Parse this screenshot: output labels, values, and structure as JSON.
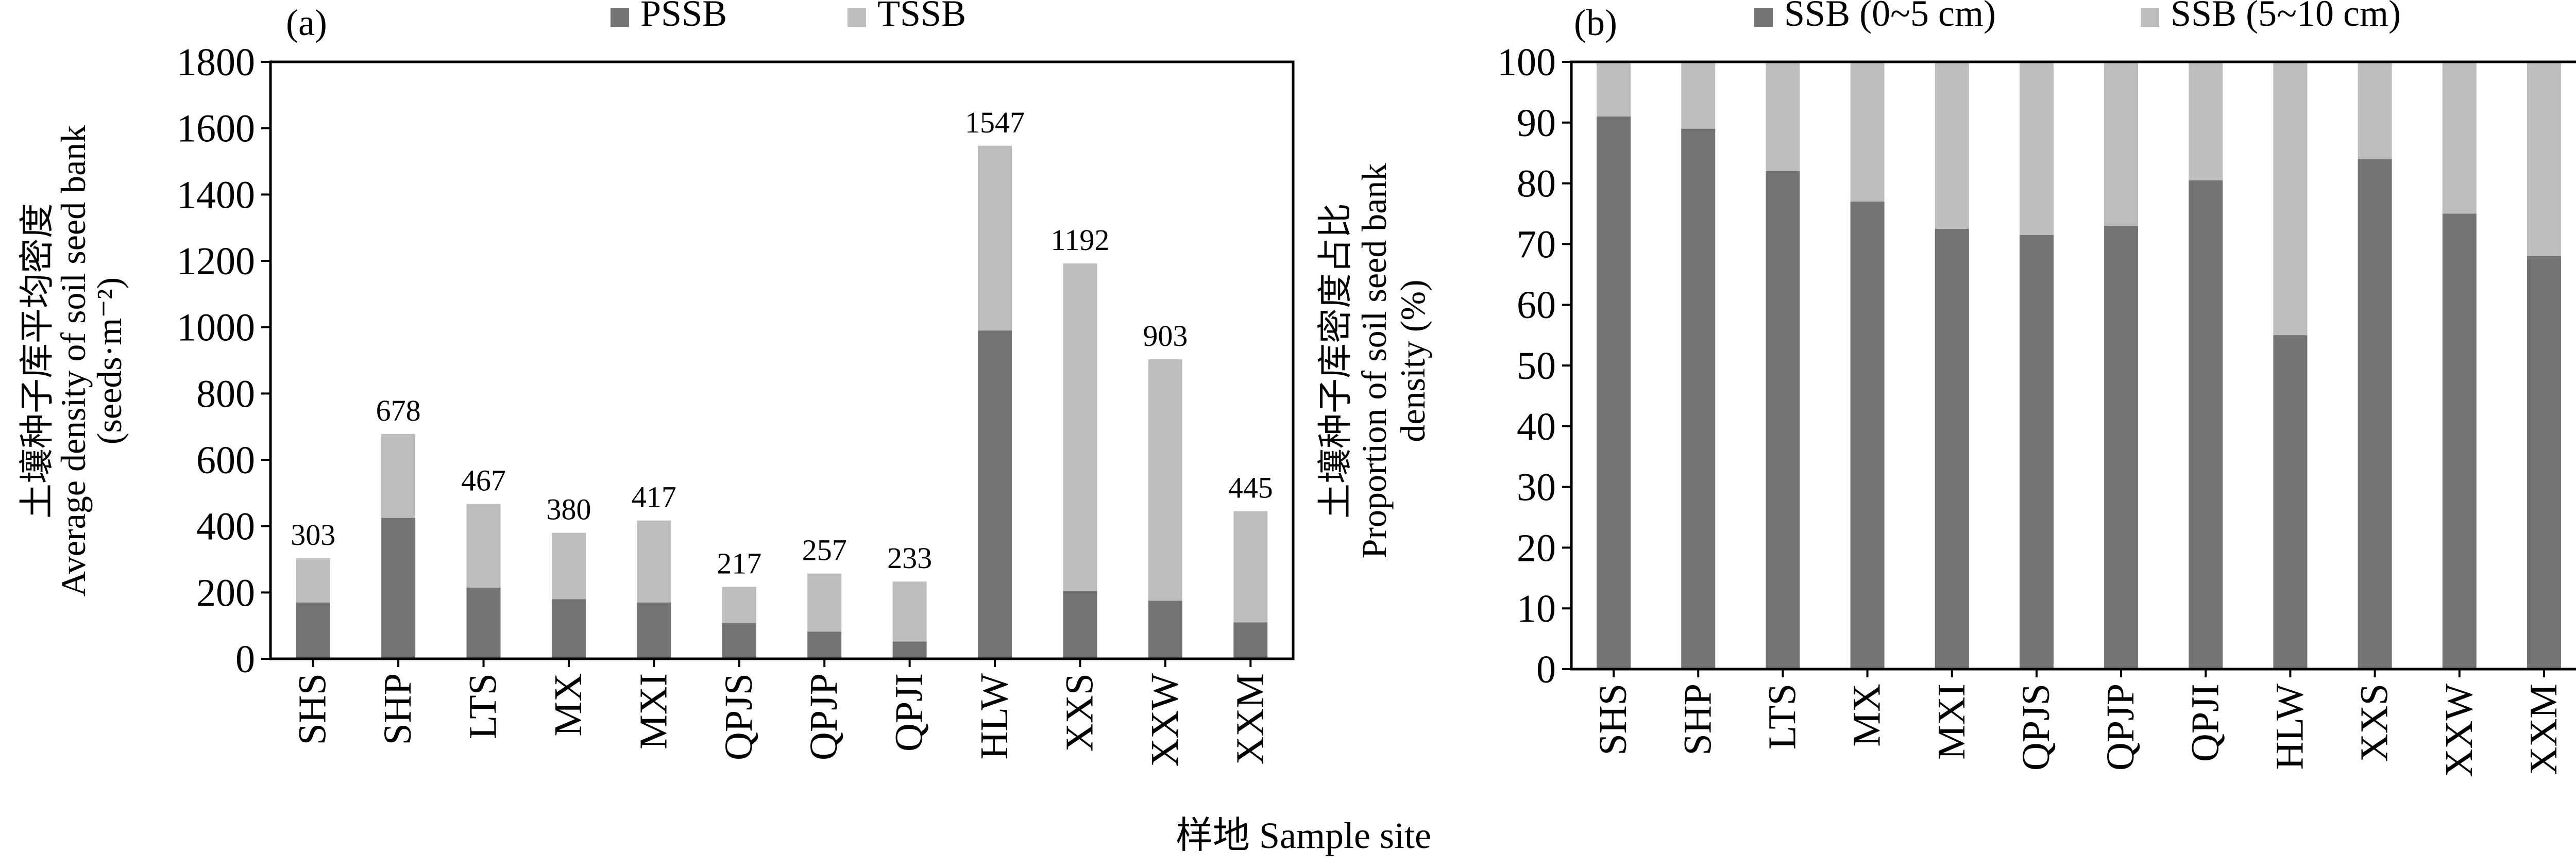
{
  "figure": {
    "shared_xlabel": "样地 Sample site",
    "colors": {
      "dark": "#737373",
      "light": "#bdbdbd",
      "axis": "#000000"
    }
  },
  "chart_data": [
    {
      "type": "bar",
      "stacked": true,
      "panel_label": "(a)",
      "ylabel_lines": [
        "土壤种子库平均密度",
        "Average density of soil seed bank",
        "(seeds·m⁻²)"
      ],
      "ylim": [
        0,
        1800
      ],
      "yticks": [
        0,
        200,
        400,
        600,
        800,
        1000,
        1200,
        1400,
        1600,
        1800
      ],
      "categories": [
        "SHS",
        "SHP",
        "LTS",
        "MX",
        "MXI",
        "QPJS",
        "QPJP",
        "QPJI",
        "HLW",
        "XXS",
        "XXW",
        "XXM"
      ],
      "series": [
        {
          "name": "PSSB",
          "color": "#737373",
          "values": [
            170,
            425,
            215,
            180,
            170,
            108,
            82,
            52,
            990,
            205,
            175,
            110
          ]
        },
        {
          "name": "TSSB",
          "color": "#bdbdbd",
          "values": [
            133,
            253,
            252,
            200,
            247,
            109,
            175,
            181,
            557,
            987,
            728,
            335
          ]
        }
      ],
      "totals": [
        303,
        678,
        467,
        380,
        417,
        217,
        257,
        233,
        1547,
        1192,
        903,
        445
      ],
      "legend": "top"
    },
    {
      "type": "bar",
      "stacked": true,
      "panel_label": "(b)",
      "ylabel_lines": [
        "土壤种子库密度占比",
        "Proportion of soil seed bank",
        "density (%)"
      ],
      "ylim": [
        0,
        100
      ],
      "yticks": [
        0,
        10,
        20,
        30,
        40,
        50,
        60,
        70,
        80,
        90,
        100
      ],
      "categories": [
        "SHS",
        "SHP",
        "LTS",
        "MX",
        "MXI",
        "QPJS",
        "QPJP",
        "QPJI",
        "HLW",
        "XXS",
        "XXW",
        "XXM"
      ],
      "series": [
        {
          "name": "SSB (0~5 cm)",
          "color": "#737373",
          "values": [
            91,
            89,
            82,
            77,
            72.5,
            71.5,
            73,
            80.5,
            55,
            84,
            75,
            68
          ]
        },
        {
          "name": "SSB (5~10 cm)",
          "color": "#bdbdbd",
          "values": [
            9,
            11,
            18,
            23,
            27.5,
            28.5,
            27,
            19.5,
            45,
            16,
            25,
            32
          ]
        }
      ],
      "legend": "top"
    }
  ]
}
